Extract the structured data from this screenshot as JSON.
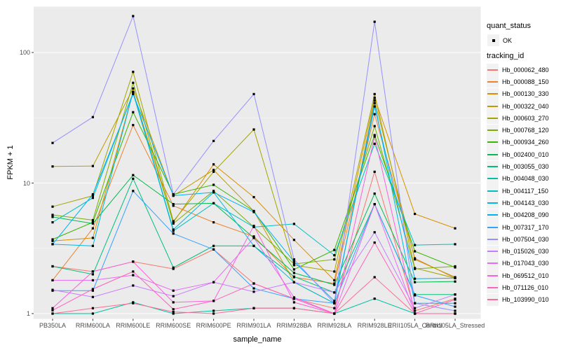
{
  "chart_data": {
    "type": "line",
    "title": "",
    "xlabel": "sample_name",
    "ylabel": "FPKM + 1",
    "y_scale": "log10",
    "ylim": [
      1,
      230
    ],
    "grid": true,
    "legend_position": "right",
    "panel_bg": "#EBEBEB",
    "grid_color": "#FFFFFF",
    "point_color": "#000000",
    "axis_text_color": "#4D4D4D",
    "y_ticks": [
      {
        "label": "100",
        "value": 100
      },
      {
        "label": "10",
        "value": 10
      },
      {
        "label": "1",
        "value": 1
      }
    ],
    "y_minor_ticks": [
      3.1623,
      31.623
    ],
    "categories": [
      "PB350LA",
      "RRIM600LA",
      "RRIM600LE",
      "RRIM600SE",
      "RRIM600PE",
      "RRIM901LA",
      "RRIM928BA",
      "RRIM928LA",
      "RRIM928LE",
      "RRII105LA_Control",
      "RRII105LA_Stressed"
    ],
    "series": [
      {
        "name": "Hb_000062_480",
        "color": "#F8766D",
        "values": [
          2.3,
          2.1,
          2.5,
          2.2,
          3.1,
          1.7,
          1.3,
          1.1,
          12.2,
          1.05,
          1.3
        ]
      },
      {
        "name": "Hb_000088_150",
        "color": "#EA8331",
        "values": [
          1.8,
          4.5,
          27.8,
          6.7,
          5.0,
          3.9,
          1.9,
          1.7,
          33.7,
          2.65,
          1.87
        ]
      },
      {
        "name": "Hb_000130_330",
        "color": "#D89000",
        "values": [
          3.6,
          3.8,
          50,
          5.0,
          13.9,
          7.8,
          3.67,
          1.8,
          45,
          5.8,
          4.5
        ]
      },
      {
        "name": "Hb_000322_040",
        "color": "#C09B00",
        "values": [
          13.4,
          13.5,
          53,
          8.0,
          12.6,
          6.1,
          1.74,
          1.2,
          43,
          2.6,
          1.9
        ]
      },
      {
        "name": "Hb_000603_270",
        "color": "#A3A500",
        "values": [
          6.6,
          8.0,
          71,
          5.1,
          12.2,
          25.7,
          2.35,
          2.1,
          48,
          2.23,
          1.87
        ]
      },
      {
        "name": "Hb_000768_120",
        "color": "#7CAE00",
        "values": [
          5.7,
          5.2,
          58.6,
          4.9,
          8.7,
          4.6,
          2.4,
          2.6,
          27.3,
          2.2,
          2.3
        ]
      },
      {
        "name": "Hb_000934_260",
        "color": "#39B600",
        "values": [
          3.7,
          5.0,
          34.9,
          8.2,
          9.7,
          6.1,
          2.18,
          3.07,
          23.3,
          3.0,
          2.26
        ]
      },
      {
        "name": "Hb_002400_010",
        "color": "#00BB4E",
        "values": [
          5.5,
          4.9,
          11.5,
          6.9,
          7.0,
          3.8,
          2.05,
          1.66,
          8.3,
          1.74,
          1.76
        ]
      },
      {
        "name": "Hb_003055_030",
        "color": "#00BF7D",
        "values": [
          2.3,
          2.0,
          10.8,
          2.25,
          3.3,
          3.3,
          1.92,
          1.45,
          6.9,
          1.4,
          1.4
        ]
      },
      {
        "name": "Hb_004048_030",
        "color": "#00C1A3",
        "values": [
          1.0,
          1.0,
          1.22,
          1.0,
          1.05,
          1.1,
          1.1,
          1.0,
          1.3,
          1.0,
          1.0
        ]
      },
      {
        "name": "Hb_004117_150",
        "color": "#00BFC4",
        "values": [
          5.0,
          7.7,
          49,
          4.3,
          7.0,
          4.6,
          4.86,
          2.8,
          20,
          3.35,
          3.4
        ]
      },
      {
        "name": "Hb_004143_030",
        "color": "#00BAE0",
        "values": [
          3.4,
          3.3,
          50,
          4.4,
          8.5,
          3.3,
          1.74,
          1.2,
          41,
          1.2,
          1.2
        ]
      },
      {
        "name": "Hb_004208_090",
        "color": "#00B0F6",
        "values": [
          3.4,
          8.2,
          48,
          8.0,
          8.5,
          6.0,
          2.5,
          1.25,
          38.6,
          1.85,
          1.87
        ]
      },
      {
        "name": "Hb_007317_170",
        "color": "#35A2FF",
        "values": [
          1.5,
          1.5,
          8.7,
          4.1,
          3.1,
          1.56,
          1.3,
          1.2,
          6.9,
          1.38,
          1.13
        ]
      },
      {
        "name": "Hb_007504_030",
        "color": "#9590FF",
        "values": [
          20.3,
          32,
          190,
          8.2,
          21,
          48,
          2.6,
          1.2,
          172,
          1.2,
          1.05
        ]
      },
      {
        "name": "Hb_015026_030",
        "color": "#C77CFF",
        "values": [
          1.52,
          1.34,
          1.64,
          1.36,
          1.74,
          1.47,
          1.74,
          1.45,
          4.2,
          1.1,
          1.4
        ]
      },
      {
        "name": "Hb_017043_030",
        "color": "#E76BF3",
        "values": [
          1.8,
          1.8,
          1.97,
          1.5,
          1.74,
          3.8,
          1.33,
          1.0,
          6.9,
          1.0,
          1.0
        ]
      },
      {
        "name": "Hb_069512_010",
        "color": "#FA62DB",
        "values": [
          1.1,
          2.1,
          2.5,
          1.22,
          1.25,
          4.7,
          1.22,
          1.0,
          22.7,
          1.0,
          1.0
        ]
      },
      {
        "name": "Hb_071126_010",
        "color": "#FF62BC",
        "values": [
          1.06,
          1.54,
          2.1,
          1.08,
          1.25,
          1.7,
          1.3,
          1.0,
          3.5,
          1.0,
          1.28
        ]
      },
      {
        "name": "Hb_103990_010",
        "color": "#FF6A98",
        "values": [
          1.0,
          1.1,
          1.2,
          1.03,
          1.0,
          1.1,
          1.1,
          1.0,
          1.9,
          1.0,
          1.0
        ]
      }
    ]
  },
  "legend": {
    "quant_status": {
      "title": "quant_status",
      "items": [
        {
          "label": "OK"
        }
      ]
    },
    "tracking": {
      "title": "tracking_id"
    }
  }
}
